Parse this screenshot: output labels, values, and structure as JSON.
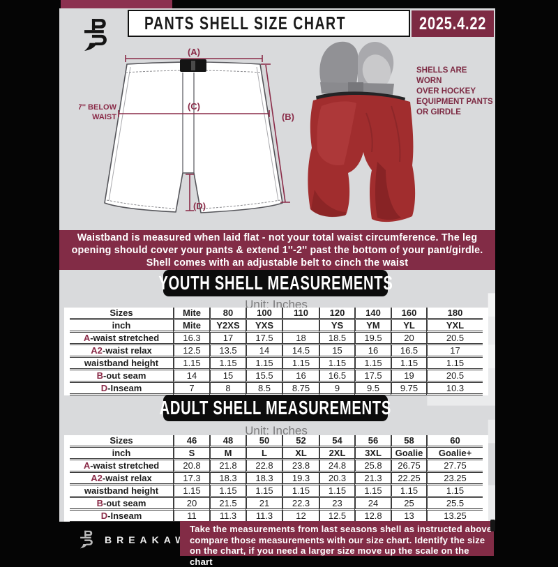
{
  "header": {
    "title": "PANTS SHELL SIZE CHART",
    "date": "2025.4.22"
  },
  "diagram": {
    "a": "(A)",
    "b": "(B)",
    "c": "(C)",
    "d": "(D)",
    "note1": "7'' BELOW",
    "note2": "WAIST"
  },
  "photo": {
    "caption1": "SHELLS ARE WORN",
    "caption2": "OVER HOCKEY",
    "caption3": "EQUIPMENT PANTS",
    "caption4": "OR GIRDLE"
  },
  "banner": {
    "l1": "Waistband is measured when laid flat - not your total waist circumference. The leg",
    "l2": "opening should cover your pants & extend 1''-2'' past the bottom of your pant/girdle.",
    "l3": "Shell comes with an adjustable belt to cinch the waist"
  },
  "youth": {
    "title": "YOUTH SHELL MEASUREMENTS",
    "unit": "Unit: Inches",
    "rows": [
      {
        "accent": "",
        "label": "Sizes",
        "bold": true,
        "values": [
          "Mite",
          "80",
          "100",
          "110",
          "120",
          "140",
          "160",
          "180"
        ]
      },
      {
        "accent": "",
        "label": "inch",
        "bold": true,
        "values": [
          "Mite",
          "Y2XS",
          "YXS",
          "",
          "YS",
          "YM",
          "YL",
          "YXL"
        ]
      },
      {
        "accent": "A",
        "label": "-waist stretched",
        "bold": false,
        "values": [
          "16.3",
          "17",
          "17.5",
          "18",
          "18.5",
          "19.5",
          "20",
          "20.5"
        ]
      },
      {
        "accent": "A2",
        "label": "-waist relax",
        "bold": false,
        "values": [
          "12.5",
          "13.5",
          "14",
          "14.5",
          "15",
          "16",
          "16.5",
          "17"
        ]
      },
      {
        "accent": "",
        "label": "waistband height",
        "bold": false,
        "values": [
          "1.15",
          "1.15",
          "1.15",
          "1.15",
          "1.15",
          "1.15",
          "1.15",
          "1.15"
        ]
      },
      {
        "accent": "B",
        "label": "-out seam",
        "bold": false,
        "values": [
          "14",
          "15",
          "15.5",
          "16",
          "16.5",
          "17.5",
          "19",
          "20.5"
        ]
      },
      {
        "accent": "D",
        "label": "-Inseam",
        "bold": false,
        "values": [
          "7",
          "8",
          "8.5",
          "8.75",
          "9",
          "9.5",
          "9.75",
          "10.3"
        ]
      }
    ]
  },
  "adult": {
    "title": "ADULT SHELL MEASUREMENTS",
    "unit": "Unit: Inches",
    "rows": [
      {
        "accent": "",
        "label": "Sizes",
        "bold": true,
        "values": [
          "46",
          "48",
          "50",
          "52",
          "54",
          "56",
          "58",
          "60"
        ]
      },
      {
        "accent": "",
        "label": "inch",
        "bold": true,
        "values": [
          "S",
          "M",
          "L",
          "XL",
          "2XL",
          "3XL",
          "Goalie",
          "Goalie+"
        ]
      },
      {
        "accent": "A",
        "label": "-waist stretched",
        "bold": false,
        "values": [
          "20.8",
          "21.8",
          "22.8",
          "23.8",
          "24.8",
          "25.8",
          "26.75",
          "27.75"
        ]
      },
      {
        "accent": "A2",
        "label": "-waist relax",
        "bold": false,
        "values": [
          "17.3",
          "18.3",
          "18.3",
          "19.3",
          "20.3",
          "21.3",
          "22.25",
          "23.25"
        ]
      },
      {
        "accent": "",
        "label": "waistband height",
        "bold": false,
        "values": [
          "1.15",
          "1.15",
          "1.15",
          "1.15",
          "1.15",
          "1.15",
          "1.15",
          "1.15"
        ]
      },
      {
        "accent": "B",
        "label": "-out seam",
        "bold": false,
        "values": [
          "20",
          "21.5",
          "21",
          "22.3",
          "23",
          "24",
          "25",
          "25.5"
        ]
      },
      {
        "accent": "D",
        "label": "-Inseam",
        "bold": false,
        "values": [
          "11",
          "11.3",
          "11.3",
          "12",
          "12.5",
          "12.8",
          "13",
          "13.25"
        ]
      }
    ]
  },
  "footer": {
    "brand": "BREAKAWAY",
    "l1": "Take the measurements from last seasons shell as instructed above",
    "l2": "compare those measurements  with our size chart. Identify the size",
    "l3": "on the chart, if you need a larger size move up the scale on the chart"
  },
  "colors": {
    "maroon": "#822c46",
    "accent": "#8a2b48",
    "page_bg": "#d9dadc",
    "heading_bg": "#0c0c0c"
  }
}
